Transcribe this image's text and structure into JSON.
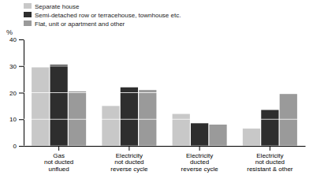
{
  "chart_data": {
    "type": "bar",
    "categories": [
      "Gas\nnot ducted\nunflued",
      "Electricity\nnot ducted\nreverse cycle",
      "Electricity\nducted\nreverse cycle",
      "Electricity\nnot ducted\nresistant & other"
    ],
    "series": [
      {
        "name": "Separate house",
        "color": "#c8c8c8",
        "values": [
          29.5,
          15.0,
          12.0,
          6.5
        ]
      },
      {
        "name": "Semi-detached row or terracehouse, townhouse etc.",
        "color": "#2e2e2e",
        "values": [
          30.5,
          22.0,
          8.5,
          13.5
        ]
      },
      {
        "name": "Flat, unit or apartment and other",
        "color": "#9a9a9a",
        "values": [
          20.5,
          21.0,
          8.0,
          19.5
        ]
      }
    ],
    "ylabel": "%",
    "ylim": [
      0,
      40
    ],
    "yticks": [
      0,
      10,
      20,
      30,
      40
    ],
    "grid": true
  }
}
